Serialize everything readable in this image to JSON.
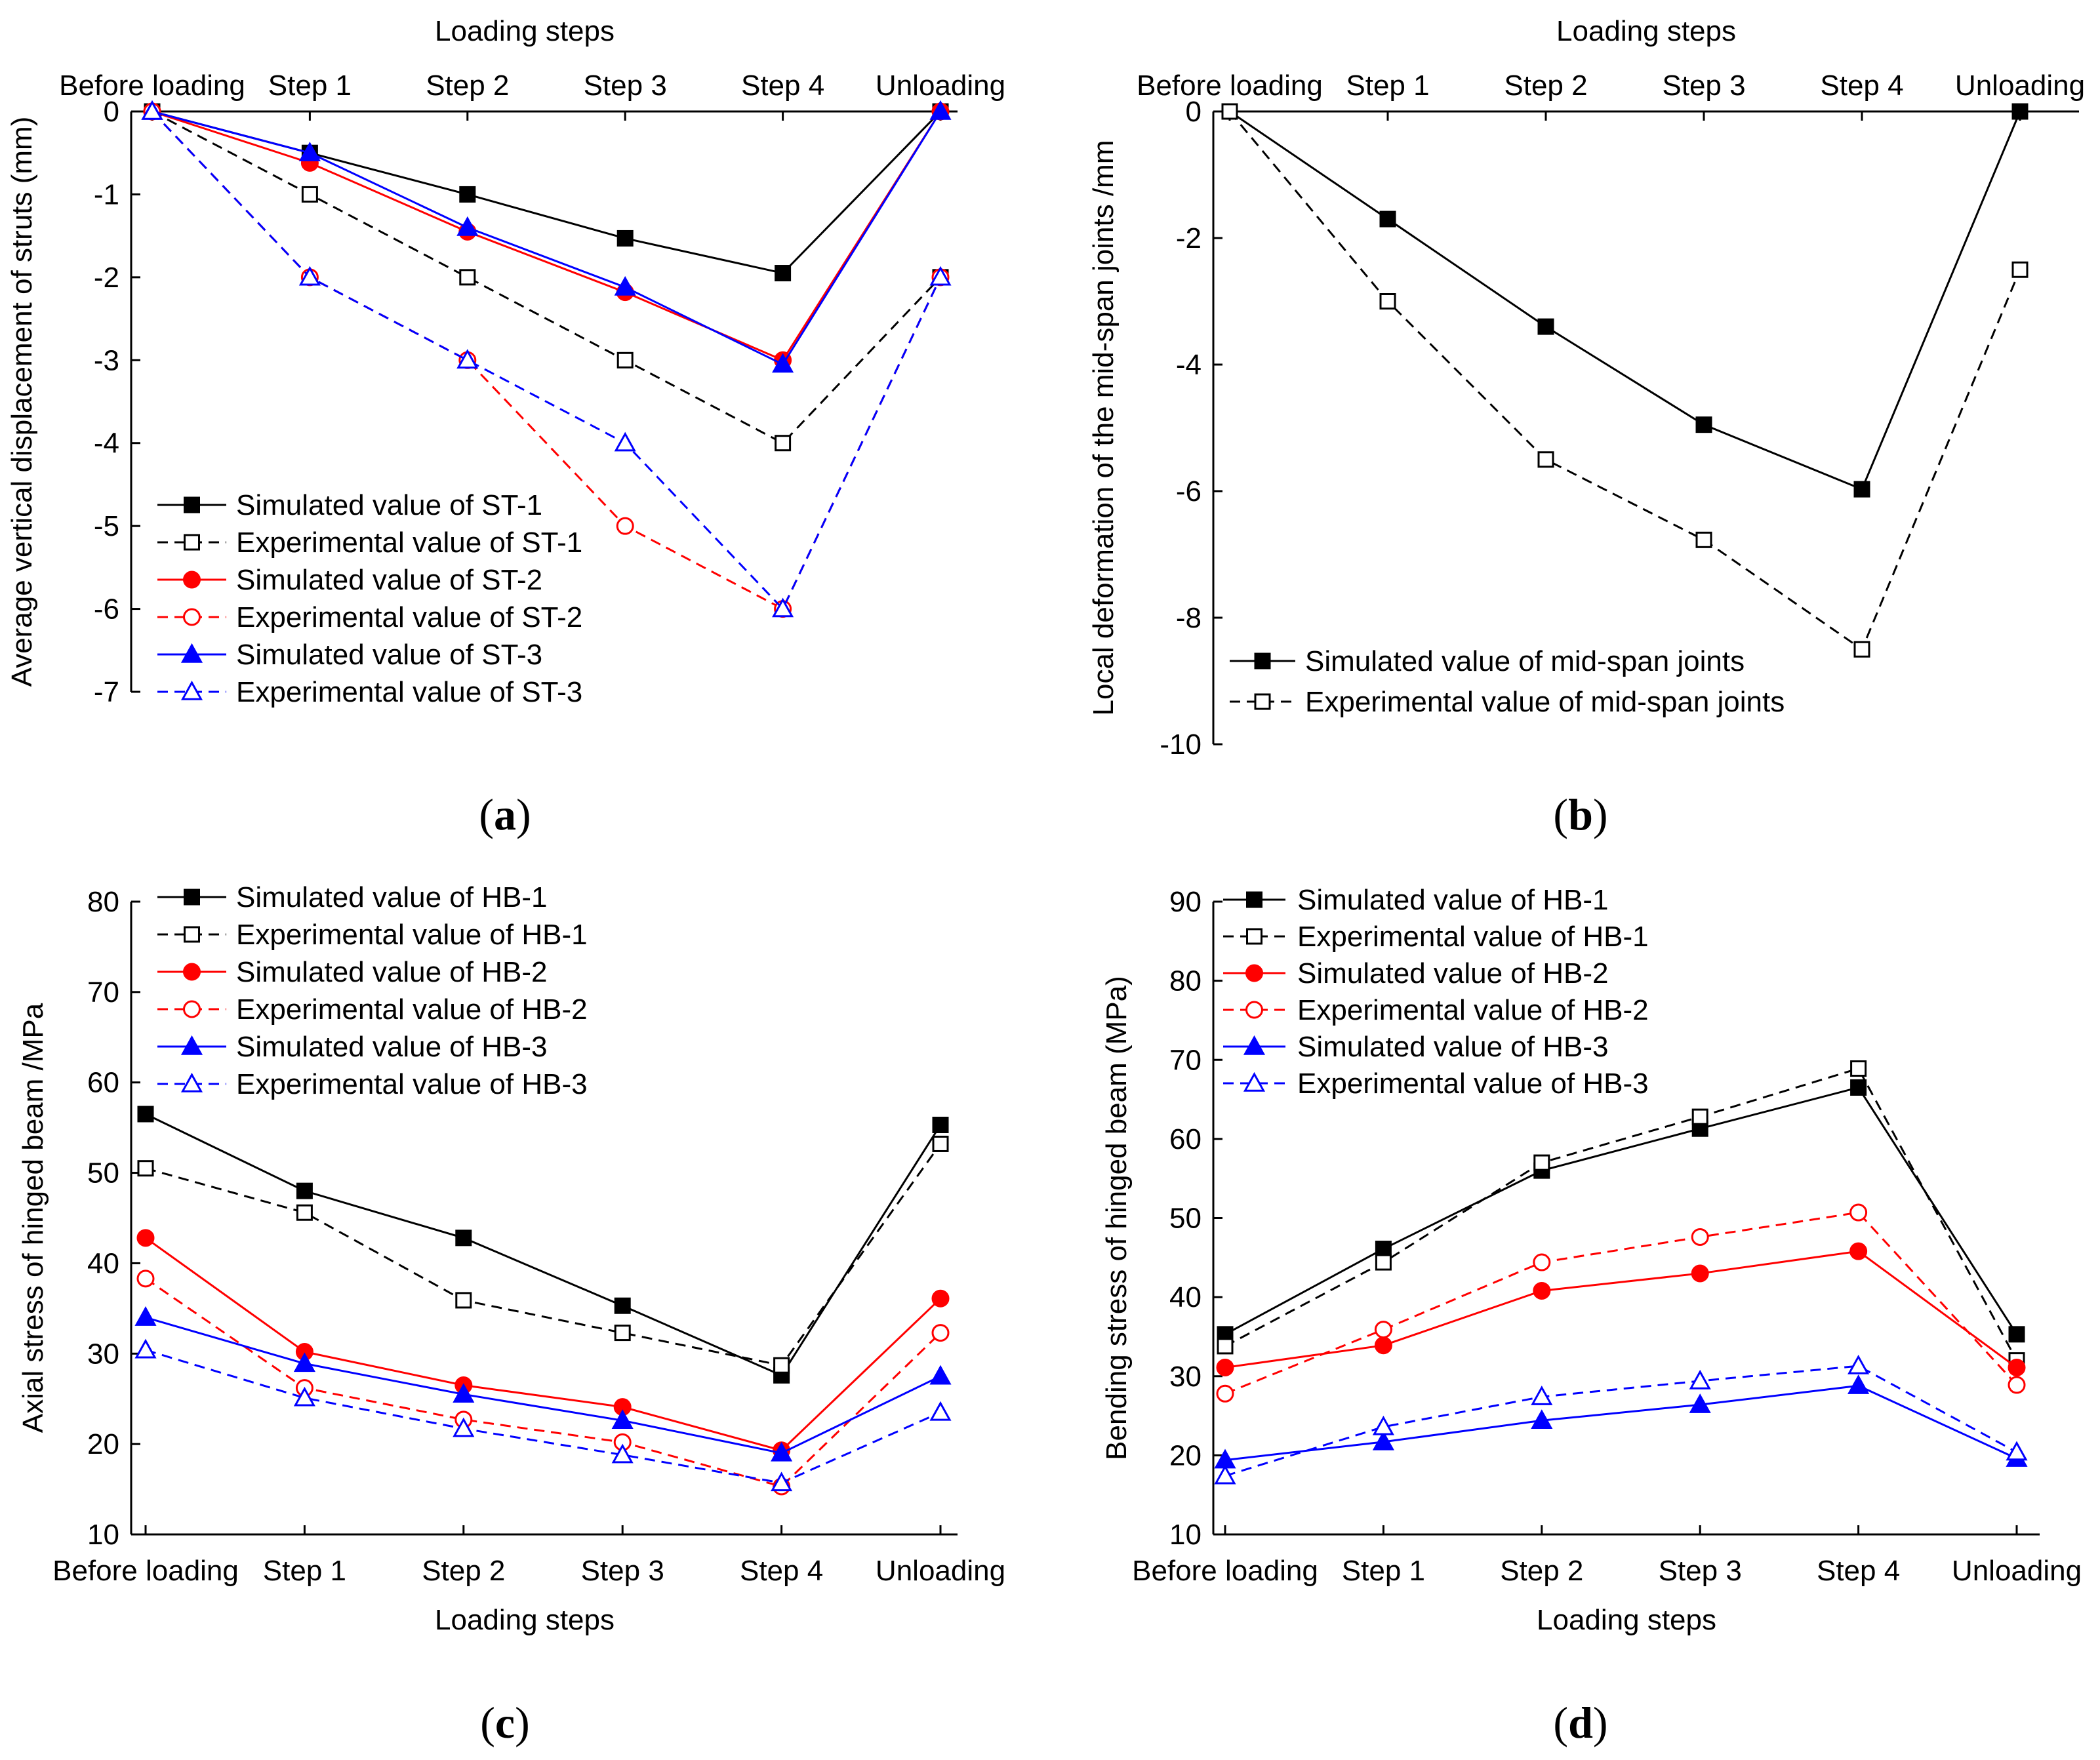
{
  "chart_data": [
    {
      "type": "line",
      "id": "a",
      "caption_letter": "a",
      "categories": [
        "Before loading",
        "Step 1",
        "Step 2",
        "Step 3",
        "Step 4",
        "Unloading"
      ],
      "xlabel": "Loading steps",
      "xaxis_position": "top",
      "ylabel": "Average vertical displacement of struts (mm)",
      "ylim": [
        -7,
        0
      ],
      "yticks": [
        0,
        -1,
        -2,
        -3,
        -4,
        -5,
        -6,
        -7
      ],
      "legend_position": "bottom-left",
      "series": [
        {
          "name": "Simulated value of ST-1",
          "color": "#000000",
          "dashed": false,
          "marker": "square",
          "filled": true,
          "values": [
            0,
            -0.5,
            -1.0,
            -1.53,
            -1.95,
            0
          ]
        },
        {
          "name": "Experimental value of ST-1",
          "color": "#000000",
          "dashed": true,
          "marker": "square",
          "filled": false,
          "values": [
            0,
            -1.0,
            -2.0,
            -3.0,
            -4.0,
            -2.0
          ]
        },
        {
          "name": "Simulated value of ST-2",
          "color": "#ff0000",
          "dashed": false,
          "marker": "circle",
          "filled": true,
          "values": [
            0,
            -0.62,
            -1.45,
            -2.18,
            -3.0,
            0
          ]
        },
        {
          "name": "Experimental value of ST-2",
          "color": "#ff0000",
          "dashed": true,
          "marker": "circle",
          "filled": false,
          "values": [
            0,
            -2.0,
            -3.0,
            -5.0,
            -6.0,
            -2.0
          ]
        },
        {
          "name": "Simulated value of ST-3",
          "color": "#0000ff",
          "dashed": false,
          "marker": "triangle",
          "filled": true,
          "values": [
            0,
            -0.5,
            -1.4,
            -2.12,
            -3.05,
            0
          ]
        },
        {
          "name": "Experimental value of ST-3",
          "color": "#0000ff",
          "dashed": true,
          "marker": "triangle",
          "filled": false,
          "values": [
            0,
            -2.0,
            -3.0,
            -4.0,
            -6.0,
            -2.0
          ]
        }
      ]
    },
    {
      "type": "line",
      "id": "b",
      "caption_letter": "b",
      "categories": [
        "Before loading",
        "Step 1",
        "Step 2",
        "Step 3",
        "Step 4",
        "Unloading"
      ],
      "xlabel": "Loading steps",
      "xaxis_position": "top",
      "ylabel": "Local deformation of the mid-span joints /mm",
      "ylim": [
        -10,
        0
      ],
      "yticks": [
        0,
        -2,
        -4,
        -6,
        -8,
        -10
      ],
      "legend_position": "bottom-left",
      "series": [
        {
          "name": "Simulated value of mid-span joints",
          "color": "#000000",
          "dashed": false,
          "marker": "square",
          "filled": true,
          "values": [
            0,
            -1.7,
            -3.4,
            -4.95,
            -5.97,
            0
          ]
        },
        {
          "name": "Experimental value of mid-span joints",
          "color": "#000000",
          "dashed": true,
          "marker": "square",
          "filled": false,
          "values": [
            0,
            -3.0,
            -5.5,
            -6.77,
            -8.5,
            -2.5
          ]
        }
      ]
    },
    {
      "type": "line",
      "id": "c",
      "caption_letter": "c",
      "categories": [
        "Before loading",
        "Step 1",
        "Step 2",
        "Step 3",
        "Step 4",
        "Unloading"
      ],
      "xlabel": "Loading steps",
      "xaxis_position": "bottom",
      "ylabel": "Axial stress of hinged beam /MPa",
      "ylim": [
        10,
        80
      ],
      "yticks": [
        10,
        20,
        30,
        40,
        50,
        60,
        70,
        80
      ],
      "legend_position": "top-left",
      "series": [
        {
          "name": "Simulated value of HB-1",
          "color": "#000000",
          "dashed": false,
          "marker": "square",
          "filled": true,
          "values": [
            56.5,
            48.0,
            42.8,
            35.3,
            27.6,
            55.3
          ]
        },
        {
          "name": "Experimental value of HB-1",
          "color": "#000000",
          "dashed": true,
          "marker": "square",
          "filled": false,
          "values": [
            50.5,
            45.6,
            35.9,
            32.3,
            28.7,
            53.2
          ]
        },
        {
          "name": "Simulated value of HB-2",
          "color": "#ff0000",
          "dashed": false,
          "marker": "circle",
          "filled": true,
          "values": [
            42.8,
            30.2,
            26.5,
            24.1,
            19.3,
            36.1
          ]
        },
        {
          "name": "Experimental value of HB-2",
          "color": "#ff0000",
          "dashed": true,
          "marker": "circle",
          "filled": false,
          "values": [
            38.3,
            26.2,
            22.7,
            20.2,
            15.3,
            32.3
          ]
        },
        {
          "name": "Simulated value of HB-3",
          "color": "#0000ff",
          "dashed": false,
          "marker": "triangle",
          "filled": true,
          "values": [
            34.0,
            28.9,
            25.5,
            22.6,
            19.0,
            27.5
          ]
        },
        {
          "name": "Experimental value of HB-3",
          "color": "#0000ff",
          "dashed": true,
          "marker": "triangle",
          "filled": false,
          "values": [
            30.4,
            25.1,
            21.7,
            18.8,
            15.7,
            23.5
          ]
        }
      ]
    },
    {
      "type": "line",
      "id": "d",
      "caption_letter": "d",
      "categories": [
        "Before loading",
        "Step 1",
        "Step 2",
        "Step 3",
        "Step 4",
        "Unloading"
      ],
      "xlabel": "Loading steps",
      "xaxis_position": "bottom",
      "ylabel": "Bending stress of hinged beam (MPa)",
      "ylim": [
        10,
        90
      ],
      "yticks": [
        10,
        20,
        30,
        40,
        50,
        60,
        70,
        80,
        90
      ],
      "legend_position": "top-left",
      "series": [
        {
          "name": "Simulated value of HB-1",
          "color": "#000000",
          "dashed": false,
          "marker": "square",
          "filled": true,
          "values": [
            35.3,
            46.1,
            56.0,
            61.3,
            66.5,
            35.3
          ]
        },
        {
          "name": "Experimental value of HB-1",
          "color": "#000000",
          "dashed": true,
          "marker": "square",
          "filled": false,
          "values": [
            33.8,
            44.4,
            57.0,
            62.8,
            68.9,
            32.0
          ]
        },
        {
          "name": "Simulated value of HB-2",
          "color": "#ff0000",
          "dashed": false,
          "marker": "circle",
          "filled": true,
          "values": [
            31.1,
            33.9,
            40.8,
            43.0,
            45.8,
            31.1
          ]
        },
        {
          "name": "Experimental value of HB-2",
          "color": "#ff0000",
          "dashed": true,
          "marker": "circle",
          "filled": false,
          "values": [
            27.8,
            35.9,
            44.4,
            47.6,
            50.7,
            28.9
          ]
        },
        {
          "name": "Simulated value of HB-3",
          "color": "#0000ff",
          "dashed": false,
          "marker": "triangle",
          "filled": true,
          "values": [
            19.4,
            21.7,
            24.4,
            26.4,
            28.8,
            19.6
          ]
        },
        {
          "name": "Experimental value of HB-3",
          "color": "#0000ff",
          "dashed": true,
          "marker": "triangle",
          "filled": false,
          "values": [
            17.4,
            23.6,
            27.4,
            29.4,
            31.3,
            20.4
          ]
        }
      ]
    }
  ]
}
